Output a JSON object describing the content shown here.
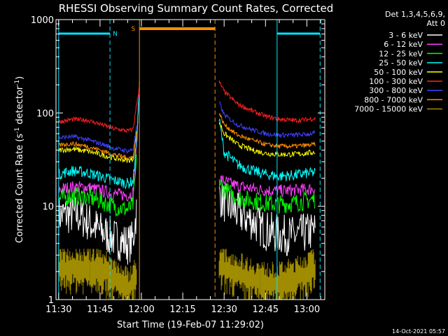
{
  "chart_data": {
    "type": "line",
    "title": "RHESSI Observing Summary Count Rates, Corrected",
    "xlabel": "Start Time (19-Feb-07 11:29:02)",
    "ylabel_main": "Corrected Count Rate (s",
    "ylabel_sup1": "-1",
    "ylabel_mid": " detector",
    "ylabel_sup2": "-1",
    "ylabel_end": ")",
    "yscale": "log",
    "ylim": [
      1,
      1000
    ],
    "xlim": [
      "11:29:02",
      "13:06:30"
    ],
    "grid": false,
    "y_ticks": [
      {
        "value": 1,
        "label": "1"
      },
      {
        "value": 10,
        "label": "10"
      },
      {
        "value": 100,
        "label": "100"
      },
      {
        "value": 1000,
        "label": "1000"
      }
    ],
    "x_ticks": [
      {
        "value": "11:30",
        "label": "11:30"
      },
      {
        "value": "11:45",
        "label": "11:45"
      },
      {
        "value": "12:00",
        "label": "12:00"
      },
      {
        "value": "12:15",
        "label": "12:15"
      },
      {
        "value": "12:30",
        "label": "12:30"
      },
      {
        "value": "12:45",
        "label": "12:45"
      },
      {
        "value": "13:00",
        "label": "13:00"
      }
    ],
    "legend_position": "top-right",
    "legend_header": [
      "Det 1,3,4,5,6,9,",
      "Att 0"
    ],
    "series": [
      {
        "name": "3 - 6 keV",
        "color": "#ffffff",
        "noise": 0.22,
        "before": [
          [
            11.5,
            8
          ],
          [
            11.6,
            8.2
          ],
          [
            11.67,
            7
          ],
          [
            11.75,
            5.5
          ],
          [
            11.83,
            4.6
          ],
          [
            11.92,
            3.9
          ],
          [
            11.95,
            4.4
          ],
          [
            11.97,
            9
          ]
        ],
        "after": [
          [
            12.47,
            13
          ],
          [
            12.5,
            11
          ],
          [
            12.58,
            8.5
          ],
          [
            12.67,
            7
          ],
          [
            12.75,
            5.5
          ],
          [
            12.83,
            5
          ],
          [
            12.92,
            4.8
          ],
          [
            13.0,
            5.2
          ],
          [
            13.05,
            5.5
          ]
        ]
      },
      {
        "name": "6 - 12 keV",
        "color": "#ff3fff",
        "noise": 0.07,
        "before": [
          [
            11.5,
            15
          ],
          [
            11.58,
            16
          ],
          [
            11.67,
            16
          ],
          [
            11.75,
            14.8
          ],
          [
            11.83,
            13.6
          ],
          [
            11.92,
            13.1
          ],
          [
            11.95,
            14
          ],
          [
            11.97,
            40
          ],
          [
            11.985,
            150
          ]
        ],
        "after": [
          [
            12.47,
            20
          ],
          [
            12.5,
            18.5
          ],
          [
            12.58,
            16.5
          ],
          [
            12.67,
            15.5
          ],
          [
            12.75,
            14.8
          ],
          [
            12.83,
            14.6
          ],
          [
            12.92,
            14.8
          ],
          [
            13.0,
            15.2
          ],
          [
            13.05,
            15.5
          ]
        ]
      },
      {
        "name": "12 - 25 keV",
        "color": "#00ff00",
        "noise": 0.1,
        "before": [
          [
            11.5,
            12
          ],
          [
            11.58,
            13
          ],
          [
            11.67,
            12.5
          ],
          [
            11.75,
            11.5
          ],
          [
            11.83,
            10
          ],
          [
            11.92,
            9.2
          ],
          [
            11.95,
            10.5
          ],
          [
            11.97,
            30
          ]
        ],
        "after": [
          [
            12.47,
            18
          ],
          [
            12.5,
            15
          ],
          [
            12.58,
            12.5
          ],
          [
            12.67,
            11.5
          ],
          [
            12.75,
            10.8
          ],
          [
            12.83,
            10.5
          ],
          [
            12.92,
            10.8
          ],
          [
            13.0,
            11.5
          ],
          [
            13.05,
            12
          ]
        ]
      },
      {
        "name": "25 - 50 keV",
        "color": "#00ffff",
        "noise": 0.06,
        "before": [
          [
            11.5,
            22
          ],
          [
            11.58,
            24
          ],
          [
            11.67,
            23
          ],
          [
            11.75,
            21
          ],
          [
            11.83,
            19
          ],
          [
            11.92,
            17.5
          ],
          [
            11.95,
            18.5
          ],
          [
            11.97,
            50
          ],
          [
            11.985,
            150
          ]
        ],
        "after": [
          [
            12.47,
            85
          ],
          [
            12.5,
            38
          ],
          [
            12.58,
            28
          ],
          [
            12.67,
            24
          ],
          [
            12.75,
            22
          ],
          [
            12.83,
            21
          ],
          [
            12.92,
            21.5
          ],
          [
            13.0,
            22.5
          ],
          [
            13.05,
            23
          ]
        ]
      },
      {
        "name": "50 - 100 keV",
        "color": "#ffff00",
        "noise": 0.03,
        "before": [
          [
            11.5,
            40
          ],
          [
            11.58,
            41
          ],
          [
            11.67,
            39
          ],
          [
            11.75,
            36
          ],
          [
            11.83,
            33
          ],
          [
            11.92,
            31
          ],
          [
            11.95,
            32
          ],
          [
            11.97,
            60
          ]
        ],
        "after": [
          [
            12.47,
            80
          ],
          [
            12.5,
            60
          ],
          [
            12.58,
            46
          ],
          [
            12.67,
            40
          ],
          [
            12.75,
            37
          ],
          [
            12.83,
            36
          ],
          [
            12.92,
            36
          ],
          [
            13.0,
            37
          ],
          [
            13.05,
            38
          ]
        ]
      },
      {
        "name": "100 - 300 keV",
        "color": "#ff2020",
        "noise": 0.025,
        "before": [
          [
            11.5,
            80
          ],
          [
            11.58,
            85
          ],
          [
            11.67,
            84
          ],
          [
            11.75,
            76
          ],
          [
            11.83,
            68
          ],
          [
            11.92,
            64
          ],
          [
            11.95,
            67
          ],
          [
            11.97,
            120
          ],
          [
            11.99,
            210
          ]
        ],
        "after": [
          [
            12.47,
            215
          ],
          [
            12.5,
            170
          ],
          [
            12.58,
            125
          ],
          [
            12.67,
            105
          ],
          [
            12.75,
            92
          ],
          [
            12.83,
            86
          ],
          [
            12.92,
            83
          ],
          [
            13.0,
            85
          ],
          [
            13.05,
            88
          ]
        ]
      },
      {
        "name": "300 - 800 keV",
        "color": "#4040ff",
        "noise": 0.025,
        "before": [
          [
            11.5,
            54
          ],
          [
            11.58,
            56
          ],
          [
            11.67,
            52
          ],
          [
            11.75,
            47
          ],
          [
            11.83,
            42
          ],
          [
            11.92,
            39
          ],
          [
            11.95,
            41
          ],
          [
            11.97,
            70
          ]
        ],
        "after": [
          [
            12.47,
            130
          ],
          [
            12.5,
            95
          ],
          [
            12.58,
            75
          ],
          [
            12.67,
            66
          ],
          [
            12.75,
            60
          ],
          [
            12.83,
            58
          ],
          [
            12.92,
            58
          ],
          [
            13.0,
            59
          ],
          [
            13.05,
            61
          ]
        ]
      },
      {
        "name": "800 - 7000 keV",
        "color": "#ff8c00",
        "noise": 0.025,
        "before": [
          [
            11.5,
            45
          ],
          [
            11.58,
            47
          ],
          [
            11.67,
            44
          ],
          [
            11.75,
            40
          ],
          [
            11.83,
            36
          ],
          [
            11.92,
            33
          ],
          [
            11.95,
            34
          ],
          [
            11.97,
            60
          ]
        ],
        "after": [
          [
            12.47,
            100
          ],
          [
            12.5,
            75
          ],
          [
            12.58,
            58
          ],
          [
            12.67,
            51
          ],
          [
            12.75,
            46
          ],
          [
            12.83,
            44
          ],
          [
            12.92,
            44
          ],
          [
            13.0,
            45
          ],
          [
            13.05,
            46
          ]
        ]
      },
      {
        "name": "7000 - 15000 keV",
        "color": "#a08c00",
        "noise": 0.0,
        "before": [
          [
            11.5,
            2.5
          ],
          [
            11.75,
            2.5
          ],
          [
            11.83,
            2
          ],
          [
            11.92,
            1.5
          ],
          [
            11.97,
            2
          ]
        ],
        "after": [
          [
            12.47,
            2.6
          ],
          [
            12.58,
            2.2
          ],
          [
            12.67,
            1.9
          ],
          [
            12.75,
            1.7
          ],
          [
            12.83,
            1.7
          ],
          [
            12.92,
            1.9
          ],
          [
            13.0,
            2.2
          ],
          [
            13.05,
            2.4
          ]
        ]
      }
    ],
    "annotations": {
      "night_label": "N",
      "saa_label": "S",
      "footer": "14-Oct-2021 05:57"
    }
  }
}
